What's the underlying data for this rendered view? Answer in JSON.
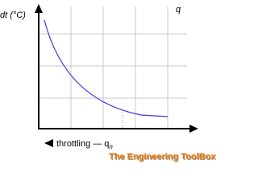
{
  "y_axis_label": "dt (°C)",
  "x_axis_label": "q",
  "annotation": {
    "text": "throttling — q",
    "subscript": "n"
  },
  "watermark": "The Engineering ToolBox"
}
